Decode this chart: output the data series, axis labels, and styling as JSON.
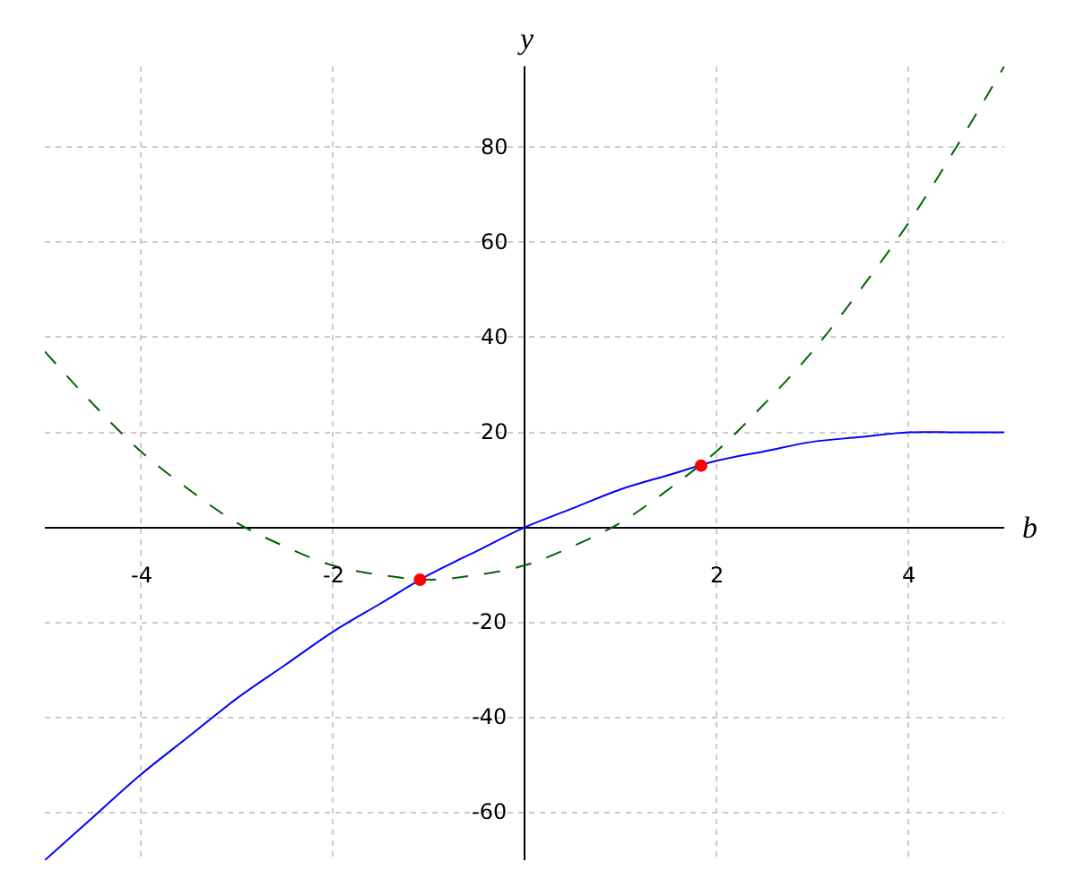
{
  "chart_data": {
    "type": "line",
    "xlabel": "b",
    "ylabel": "y",
    "xlim": [
      -5,
      5
    ],
    "ylim": [
      -70,
      97
    ],
    "xticks": [
      -4,
      -2,
      2,
      4
    ],
    "yticks": [
      -60,
      -40,
      -20,
      20,
      40,
      60,
      80
    ],
    "grid": true,
    "series": [
      {
        "color": "#0000ff",
        "line_style": "solid",
        "x": [
          -5,
          -4.5,
          -4,
          -3.5,
          -3,
          -2.5,
          -2,
          -1.5,
          -1,
          -0.5,
          0,
          0.5,
          1,
          1.5,
          2,
          2.5,
          3,
          3.5,
          4,
          4.5,
          5
        ],
        "values": [
          -70,
          -61,
          -52,
          -44,
          -36,
          -29,
          -22,
          -16,
          -10,
          -5,
          0,
          4,
          8,
          11,
          14,
          16,
          18,
          19,
          20,
          20,
          20
        ]
      },
      {
        "color": "#006400",
        "line_style": "dashed",
        "x": [
          -5,
          -4.5,
          -4,
          -3.5,
          -3,
          -2.5,
          -2,
          -1.5,
          -1,
          -0.5,
          0,
          0.5,
          1,
          1.5,
          2,
          2.5,
          3,
          3.5,
          4,
          4.5,
          5
        ],
        "values": [
          37,
          26,
          16,
          8,
          1,
          -4,
          -8,
          -10,
          -11,
          -10,
          -8,
          -4,
          1,
          8,
          16,
          26,
          37,
          50,
          64,
          80,
          97
        ]
      },
      {
        "type": "scatter",
        "color": "#ff0000",
        "marker": "circle",
        "x": [
          -1.09,
          1.84
        ],
        "values": [
          -11,
          13
        ]
      }
    ]
  }
}
